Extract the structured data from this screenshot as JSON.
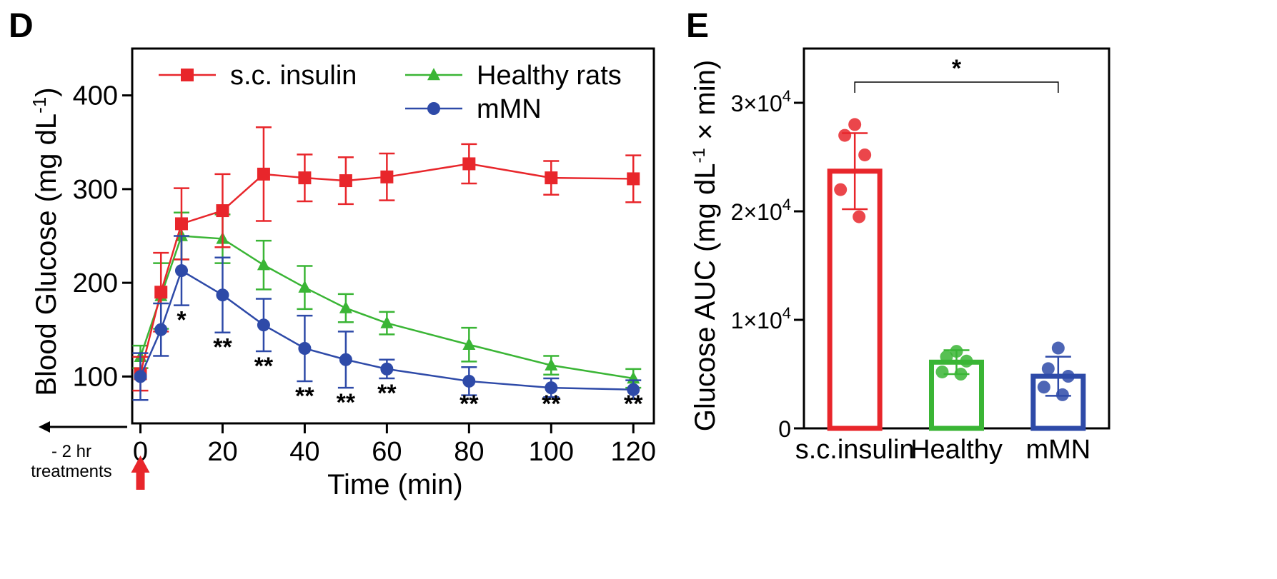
{
  "chart_data": [
    {
      "type": "line",
      "panel_label": "D",
      "xlabel": "Time (min)",
      "ylabel": "Blood Glucose (mg dL",
      "ylabel_sup": "-1",
      "ylabel_end": ")",
      "xlim": [
        -2,
        125
      ],
      "ylim": [
        50,
        450
      ],
      "x_ticks": [
        0,
        20,
        40,
        60,
        80,
        100,
        120
      ],
      "y_ticks": [
        100,
        200,
        300,
        400
      ],
      "legend_placement": "top",
      "grid": false,
      "annotation": {
        "arrow_label_line1": "- 2 hr",
        "arrow_label_line2": "treatments"
      },
      "series": [
        {
          "name": "s.c. insulin",
          "color": "#e8262b",
          "marker": "square",
          "x": [
            0,
            5,
            10,
            20,
            30,
            40,
            50,
            60,
            80,
            100,
            120
          ],
          "y": [
            103,
            190,
            263,
            277,
            316,
            312,
            309,
            313,
            327,
            312,
            311
          ],
          "err": [
            18,
            42,
            38,
            39,
            50,
            25,
            25,
            25,
            21,
            18,
            25
          ]
        },
        {
          "name": "Healthy rats",
          "color": "#3ab535",
          "marker": "triangle",
          "x": [
            0,
            5,
            10,
            20,
            30,
            40,
            50,
            60,
            80,
            100,
            120
          ],
          "y": [
            121,
            186,
            250,
            247,
            219,
            195,
            173,
            157,
            134,
            112,
            98
          ],
          "err": [
            12,
            35,
            25,
            26,
            26,
            23,
            15,
            12,
            18,
            10,
            10
          ]
        },
        {
          "name": "mMN",
          "color": "#2e4aa8",
          "marker": "circle",
          "x": [
            0,
            5,
            10,
            20,
            30,
            40,
            50,
            60,
            80,
            100,
            120
          ],
          "y": [
            100,
            150,
            213,
            187,
            155,
            130,
            118,
            108,
            95,
            88,
            86
          ],
          "err": [
            25,
            28,
            37,
            40,
            28,
            35,
            30,
            10,
            15,
            10,
            10
          ]
        }
      ],
      "significance": [
        {
          "x": 10,
          "label": "*"
        },
        {
          "x": 20,
          "label": "**"
        },
        {
          "x": 30,
          "label": "**"
        },
        {
          "x": 40,
          "label": "**"
        },
        {
          "x": 50,
          "label": "**"
        },
        {
          "x": 60,
          "label": "**"
        },
        {
          "x": 80,
          "label": "**"
        },
        {
          "x": 100,
          "label": "**"
        },
        {
          "x": 120,
          "label": "**"
        }
      ]
    },
    {
      "type": "bar",
      "panel_label": "E",
      "ylabel": "Glucose AUC (mg dL",
      "ylabel_sup": "-1",
      "ylabel_end": " × min)",
      "categories": [
        "s.c.insulin",
        "Healthy",
        "mMN"
      ],
      "colors": [
        "#e8262b",
        "#3ab535",
        "#2e4aa8"
      ],
      "values": [
        23700,
        6100,
        4800
      ],
      "err": [
        3500,
        1100,
        1800
      ],
      "points": [
        [
          28000,
          27000,
          25200,
          22000,
          19500
        ],
        [
          7100,
          6600,
          6200,
          5200,
          5000
        ],
        [
          7400,
          5500,
          4800,
          3800,
          3100
        ]
      ],
      "ylim": [
        0,
        35000
      ],
      "y_ticks": [
        {
          "value": 0,
          "base": "0",
          "exp": ""
        },
        {
          "value": 10000,
          "base": "1×10",
          "exp": "4"
        },
        {
          "value": 20000,
          "base": "2×10",
          "exp": "4"
        },
        {
          "value": 30000,
          "base": "3×10",
          "exp": "4"
        }
      ],
      "comparison": {
        "from": 0,
        "to": 2,
        "label": "*"
      },
      "grid": false
    }
  ]
}
